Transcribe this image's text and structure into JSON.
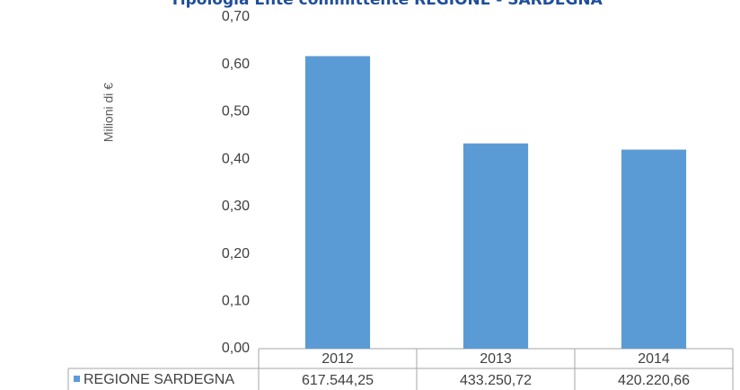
{
  "chart_data": {
    "type": "bar",
    "title": "Tipologia Ente committente REGIONE - SARDEGNA",
    "y_label": "Milioni di €",
    "categories": [
      "2012",
      "2013",
      "2014"
    ],
    "series": [
      {
        "name": "REGIONE SARDEGNA",
        "color": "#5b9bd5",
        "values": [
          0.61754425,
          0.43325072,
          0.42022066
        ],
        "value_labels": [
          "617.544,25",
          "433.250,72",
          "420.220,66"
        ]
      }
    ],
    "ylim": [
      0,
      0.7
    ],
    "yticks": [
      {
        "value": 0,
        "label": "0,00"
      },
      {
        "value": 0.1,
        "label": "0,10"
      },
      {
        "value": 0.2,
        "label": "0,20"
      },
      {
        "value": 0.3,
        "label": "0,30"
      },
      {
        "value": 0.4,
        "label": "0,40"
      },
      {
        "value": 0.5,
        "label": "0,50"
      },
      {
        "value": 0.6,
        "label": "0,60"
      },
      {
        "value": 0.7,
        "label": "0,70"
      }
    ],
    "grid": false
  }
}
